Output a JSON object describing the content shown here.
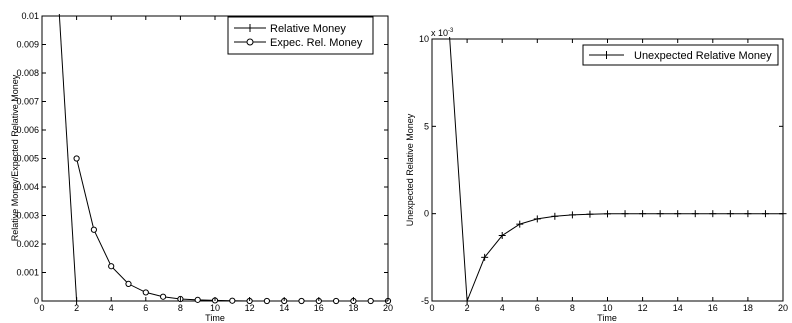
{
  "chart_data": [
    {
      "type": "line",
      "title": "",
      "xlabel": "Time",
      "ylabel": "Relative Money/Expected Relative Money",
      "xlim": [
        0,
        20
      ],
      "ylim": [
        0,
        0.01
      ],
      "x_ticks": [
        "0",
        "2",
        "4",
        "6",
        "8",
        "10",
        "12",
        "14",
        "16",
        "18",
        "20"
      ],
      "y_ticks": [
        "0",
        "0.001",
        "0.002",
        "0.003",
        "0.004",
        "0.005",
        "0.006",
        "0.007",
        "0.008",
        "0.009",
        "0.01"
      ],
      "grid": false,
      "legend_position": "top-right",
      "series": [
        {
          "name": "Relative Money",
          "marker": "plus",
          "x": [
            1,
            2
          ],
          "y": [
            0.0105,
            0
          ]
        },
        {
          "name": "Expec. Rel. Money",
          "marker": "circle",
          "x": [
            2,
            3,
            4,
            5,
            6,
            7,
            8,
            9,
            10,
            11,
            12,
            13,
            14,
            15,
            16,
            17,
            18,
            19,
            20
          ],
          "y": [
            0.005,
            0.0025,
            0.00122,
            0.0006,
            0.0003,
            0.00015,
            7e-05,
            4e-05,
            2e-05,
            1e-05,
            0,
            0,
            0,
            0,
            0,
            0,
            0,
            0,
            0
          ]
        }
      ]
    },
    {
      "type": "line",
      "title": "",
      "xlabel": "Time",
      "ylabel": "Unexpected Relative Money",
      "exponent_label": "x 10",
      "exponent_power": "-3",
      "xlim": [
        0,
        20
      ],
      "ylim": [
        -5,
        10
      ],
      "x_ticks": [
        "0",
        "2",
        "4",
        "6",
        "8",
        "10",
        "12",
        "14",
        "16",
        "18",
        "20"
      ],
      "y_ticks": [
        "-5",
        "0",
        "5",
        "10"
      ],
      "grid": false,
      "legend_position": "top-right",
      "series": [
        {
          "name": "Unexpected Relative Money",
          "marker": "plus",
          "x": [
            1,
            2,
            3,
            4,
            5,
            6,
            7,
            8,
            9,
            10,
            11,
            12,
            13,
            14,
            15,
            16,
            17,
            18,
            19,
            20
          ],
          "y": [
            10.5,
            -5,
            -2.5,
            -1.25,
            -0.6,
            -0.3,
            -0.15,
            -0.07,
            -0.03,
            -0.01,
            0,
            0,
            0,
            0,
            0,
            0,
            0,
            0,
            0,
            0
          ]
        }
      ]
    }
  ]
}
